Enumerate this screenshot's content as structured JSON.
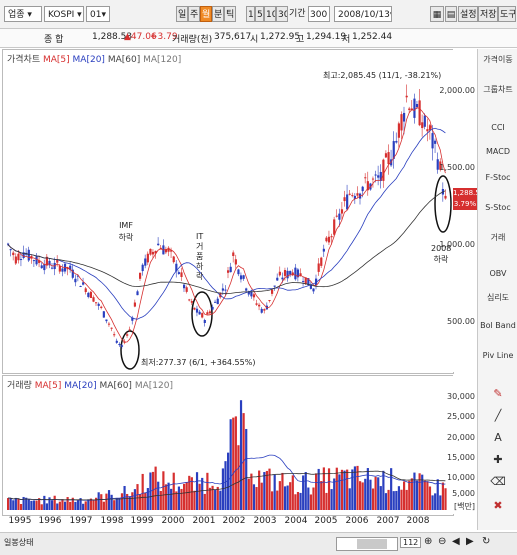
{
  "toolbar": {
    "market_select": "업종",
    "index_select": "KOSPI",
    "type_select": "01",
    "period_buttons": [
      "일",
      "주",
      "월",
      "분",
      "틱"
    ],
    "active_period": "월",
    "interval_buttons": [
      "1",
      "5",
      "10",
      "30"
    ],
    "period_label": "기간",
    "period_value": "300",
    "date_value": "2008/10/13",
    "right_buttons": [
      "설정",
      "저장",
      "도구"
    ]
  },
  "infobar": {
    "name": "종 합",
    "price": "1,288.53",
    "change": "▲47.06",
    "change_pct": "+3.79",
    "volume_label": "거래량(천)",
    "volume": "375,617",
    "open_label": "시",
    "open": "1,272.95",
    "high_label": "고",
    "high": "1,294.19",
    "low_label": "저",
    "low": "1,252.44"
  },
  "price_panel": {
    "title": "가격차트",
    "ma5": "MA[5]",
    "ma20": "MA[20]",
    "ma60": "MA[60]",
    "ma120": "MA[120]",
    "y_ticks": [
      "2,000.00",
      "1,500.00",
      "1,000.00",
      "500.00"
    ],
    "last_price": "1,288.53",
    "last_pct": "3.79%",
    "annotations": {
      "high": "최고:2,085.45 (11/1, -38.21%)",
      "low": "최저:277.37 (6/1, +364.55%)",
      "imf": "IMF 하락",
      "it": "IT거품 하락",
      "y2008": "2008 하락"
    }
  },
  "volume_panel": {
    "title": "거래량",
    "ma5": "MA[5]",
    "ma20": "MA[20]",
    "ma60": "MA[60]",
    "ma120": "MA[120]",
    "y_ticks": [
      "30,000",
      "25,000",
      "20,000",
      "15,000",
      "10,000",
      "5,000"
    ],
    "unit": "[백만]"
  },
  "x_axis": [
    "1995",
    "1996",
    "1997",
    "1998",
    "1999",
    "2000",
    "2001",
    "2002",
    "2003",
    "2004",
    "2005",
    "2006",
    "2007",
    "2008"
  ],
  "sidebar": [
    "가격이동",
    "그룹차트",
    "CCI",
    "MACD",
    "F-Stoc",
    "S-Stoc",
    "거래",
    "OBV",
    "심리도",
    "Bol Band",
    "Piv Line"
  ],
  "bottom": {
    "left_label": "일봉상태",
    "zoom_value": "112"
  },
  "colors": {
    "up": "#d62f2f",
    "down": "#2a3fbf",
    "accent": "#f08a24"
  }
}
